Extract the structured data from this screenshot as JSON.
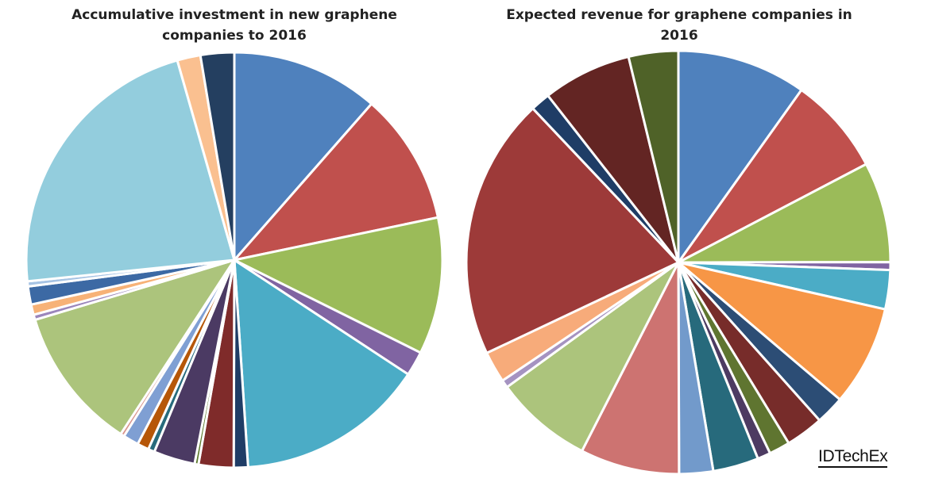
{
  "chart_data": [
    {
      "type": "pie",
      "title_lines": [
        "Accumulative  investment  in  new  graphene",
        "companies  to  2016"
      ],
      "start_angle_deg": 0,
      "direction": "clockwise",
      "values": [
        11.4,
        10.2,
        10.6,
        1.9,
        14.6,
        1.1,
        2.7,
        0.3,
        3.2,
        0.5,
        0.9,
        1.2,
        0.3,
        11.1,
        0.4,
        0.8,
        1.4,
        0.4,
        22.1,
        1.8,
        2.6
      ],
      "colors": [
        "#4f81bd",
        "#c0504d",
        "#9bbb59",
        "#8064a2",
        "#4bacc6",
        "#1f3d66",
        "#7f2b2a",
        "#5c7a2c",
        "#4b3a63",
        "#276b7c",
        "#b65708",
        "#7f9fd3",
        "#d9968e",
        "#acc47c",
        "#9b86bc",
        "#f7b277",
        "#3c69a4",
        "#a6c3e4",
        "#93cddd",
        "#fac090",
        "#243f60"
      ]
    },
    {
      "type": "pie",
      "title_lines": [
        "Expected  revenue  for  graphene  companies  in",
        "2016"
      ],
      "start_angle_deg": 0,
      "direction": "clockwise",
      "values": [
        9.9,
        7.5,
        7.7,
        0.6,
        3.0,
        7.7,
        2.2,
        2.9,
        1.6,
        1.0,
        3.5,
        2.6,
        7.6,
        7.5,
        0.6,
        2.4,
        20.1,
        1.5,
        6.8,
        3.8
      ],
      "colors": [
        "#4f81bd",
        "#c0504d",
        "#9bbb59",
        "#8064a2",
        "#4bacc6",
        "#f79646",
        "#2c4d75",
        "#772c2a",
        "#5f7530",
        "#4d3b62",
        "#276a7c",
        "#729acb",
        "#cd7371",
        "#acc47c",
        "#a593c1",
        "#f7ab7a",
        "#9d3a39",
        "#1f3d66",
        "#632523",
        "#4f6228"
      ]
    }
  ],
  "branding": {
    "logo": "IDTechEx"
  }
}
